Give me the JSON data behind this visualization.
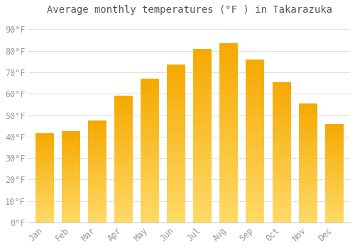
{
  "title": "Average monthly temperatures (°F ) in Takarazuka",
  "months": [
    "Jan",
    "Feb",
    "Mar",
    "Apr",
    "May",
    "Jun",
    "Jul",
    "Aug",
    "Sep",
    "Oct",
    "Nov",
    "Dec"
  ],
  "values": [
    41.5,
    42.5,
    47.5,
    59.0,
    67.0,
    73.5,
    81.0,
    83.5,
    76.0,
    65.5,
    55.5,
    46.0
  ],
  "bar_color_top": "#F5A800",
  "bar_color_bottom": "#FFD966",
  "background_color": "#FFFFFF",
  "grid_color": "#E0E0E0",
  "title_color": "#555555",
  "tick_label_color": "#999999",
  "ylim": [
    0,
    95
  ],
  "yticks": [
    0,
    10,
    20,
    30,
    40,
    50,
    60,
    70,
    80,
    90
  ],
  "ytick_labels": [
    "0°F",
    "10°F",
    "20°F",
    "30°F",
    "40°F",
    "50°F",
    "60°F",
    "70°F",
    "80°F",
    "90°F"
  ],
  "title_fontsize": 10,
  "tick_fontsize": 8.5,
  "bar_width": 0.7
}
